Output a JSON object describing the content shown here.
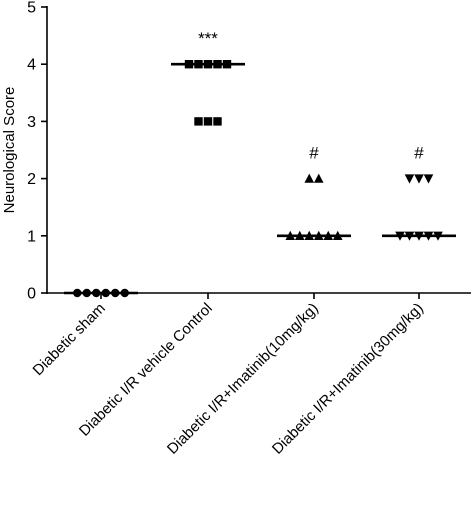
{
  "chart_data": {
    "type": "scatter",
    "ylabel": "Neurological Score",
    "xlabel": "",
    "ylim": [
      0,
      5
    ],
    "yticks": [
      0,
      1,
      2,
      3,
      4,
      5
    ],
    "grid": false,
    "categories": [
      "Diabetic sham",
      "Diabetic I/R vehicle Control",
      "Diabetic I/R+Imatinib(10mg/kg)",
      "Diabetic I/R+Imatinib(30mg/kg)"
    ],
    "groups": [
      {
        "marker": "circle",
        "points": [
          0,
          0,
          0,
          0,
          0,
          0
        ],
        "median": 0,
        "annotation": ""
      },
      {
        "marker": "square",
        "points": [
          4,
          4,
          4,
          4,
          4,
          3,
          3,
          3
        ],
        "median": 4,
        "annotation": "***"
      },
      {
        "marker": "triangle-up",
        "points": [
          2,
          2,
          1,
          1,
          1,
          1,
          1,
          1
        ],
        "median": 1,
        "annotation": "#"
      },
      {
        "marker": "triangle-down",
        "points": [
          2,
          2,
          2,
          1,
          1,
          1,
          1,
          1
        ],
        "median": 1,
        "annotation": "#"
      }
    ]
  }
}
